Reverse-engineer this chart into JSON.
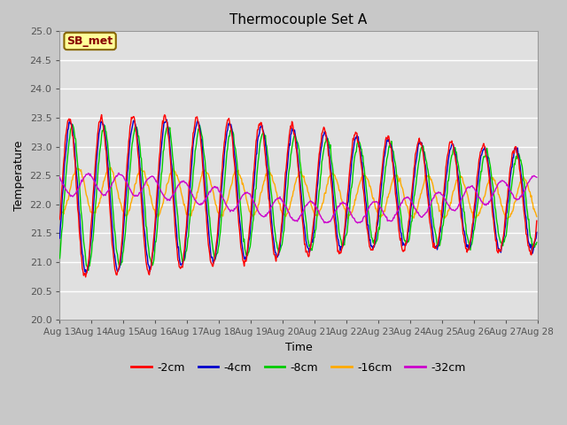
{
  "title": "Thermocouple Set A",
  "xlabel": "Time",
  "ylabel": "Temperature",
  "ylim": [
    20.0,
    25.0
  ],
  "yticks": [
    20.0,
    20.5,
    21.0,
    21.5,
    22.0,
    22.5,
    23.0,
    23.5,
    24.0,
    24.5,
    25.0
  ],
  "xtick_labels": [
    "Aug 13",
    "Aug 14",
    "Aug 15",
    "Aug 16",
    "Aug 17",
    "Aug 18",
    "Aug 19",
    "Aug 20",
    "Aug 21",
    "Aug 22",
    "Aug 23",
    "Aug 24",
    "Aug 25",
    "Aug 26",
    "Aug 27",
    "Aug 28"
  ],
  "series_labels": [
    "-2cm",
    "-4cm",
    "-8cm",
    "-16cm",
    "-32cm"
  ],
  "series_colors": [
    "#ff0000",
    "#0000cc",
    "#00cc00",
    "#ffaa00",
    "#cc00cc"
  ],
  "annotation_text": "SB_met",
  "annotation_bg": "#ffff99",
  "annotation_border": "#886600",
  "annotation_text_color": "#880000",
  "fig_bg": "#c8c8c8",
  "plot_bg": "#e0e0e0",
  "grid_color": "#ffffff",
  "n_days": 15,
  "base_temp": 22.1,
  "period_hours": 24
}
